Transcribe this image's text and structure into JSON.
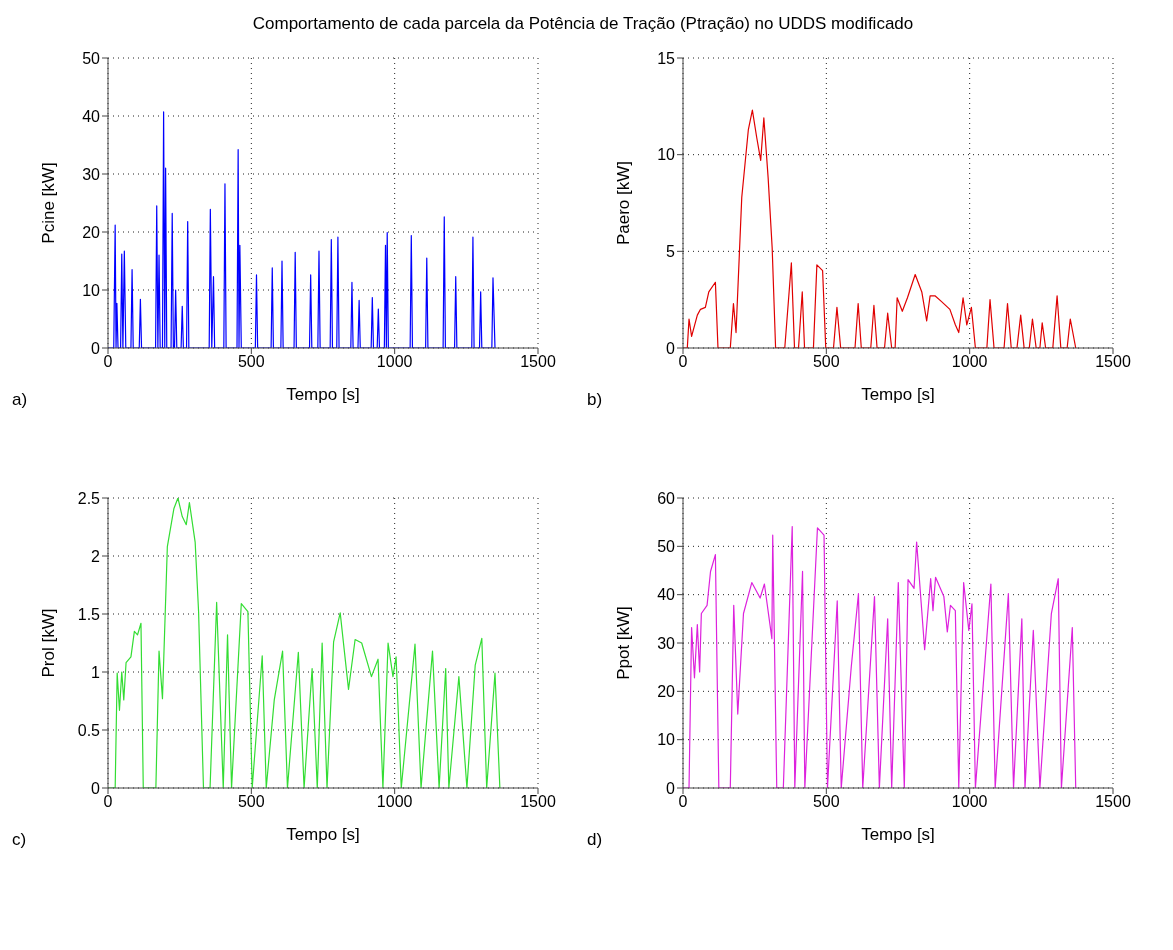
{
  "chart_data": [
    {
      "type": "line",
      "title": "Comportamento de cada parcela da Potência de Tração (Ptração) no UDDS modificado",
      "annotations": [
        "a)"
      ],
      "xlabel": "Tempo [s]",
      "ylabel": "Pcine [kW]",
      "xlim": [
        0,
        1500
      ],
      "xticks": [
        0,
        500,
        1000,
        1500
      ],
      "ylim": [
        0,
        50
      ],
      "yticks": [
        0,
        10,
        20,
        30,
        40,
        50
      ],
      "grid": true,
      "series": [
        {
          "color": "#0000ff",
          "x": [
            0,
            20,
            25,
            28,
            31,
            35,
            44,
            48,
            52,
            57,
            62,
            80,
            84,
            88,
            109,
            113,
            117,
            166,
            170,
            174,
            178,
            182,
            190,
            194,
            198,
            201,
            205,
            220,
            224,
            228,
            232,
            236,
            240,
            255,
            259,
            263,
            274,
            278,
            282,
            353,
            357,
            362,
            368,
            372,
            404,
            408,
            412,
            450,
            454,
            457,
            460,
            465,
            514,
            518,
            522,
            569,
            573,
            577,
            603,
            607,
            611,
            649,
            653,
            657,
            703,
            707,
            711,
            732,
            736,
            740,
            775,
            779,
            783,
            798,
            802,
            806,
            847,
            851,
            855,
            872,
            876,
            880,
            918,
            922,
            926,
            939,
            943,
            947,
            964,
            968,
            971,
            974,
            978,
            1054,
            1058,
            1062,
            1108,
            1112,
            1116,
            1169,
            1173,
            1177,
            1209,
            1213,
            1217,
            1269,
            1273,
            1277,
            1296,
            1300,
            1304,
            1339,
            1343,
            1350
          ],
          "values": [
            0,
            0,
            21.2,
            0,
            7.7,
            0,
            0,
            16.2,
            0,
            16.7,
            0,
            0,
            13.5,
            0,
            0,
            8.4,
            0,
            0,
            24.5,
            0,
            16,
            0,
            0,
            40.7,
            0,
            31,
            0,
            0,
            23.2,
            0,
            0,
            10,
            0,
            0,
            7.2,
            0,
            0,
            21.8,
            0,
            0,
            23.9,
            0,
            12.3,
            0,
            0,
            28.3,
            0,
            0,
            34.2,
            0,
            17.7,
            0,
            0,
            12.6,
            0,
            0,
            13.8,
            0,
            0,
            15,
            0,
            0,
            16.5,
            0,
            0,
            12.6,
            0,
            0,
            16.7,
            0,
            0,
            18.7,
            0,
            0,
            19.1,
            0,
            0,
            11.3,
            0,
            0,
            8.2,
            0,
            0,
            8.7,
            0,
            0,
            6.7,
            0,
            0,
            17.7,
            0,
            19.9,
            0,
            0,
            19.4,
            0,
            0,
            15.5,
            0,
            0,
            22.6,
            0,
            0,
            12.3,
            0,
            0,
            19.1,
            0,
            0,
            9.7,
            0,
            0,
            12.1,
            0
          ]
        }
      ]
    },
    {
      "type": "line",
      "annotations": [
        "b)"
      ],
      "xlabel": "Tempo [s]",
      "ylabel": "Paero [kW]",
      "xlim": [
        0,
        1500
      ],
      "xticks": [
        0,
        500,
        1000,
        1500
      ],
      "ylim": [
        0,
        15
      ],
      "yticks": [
        0,
        5,
        10,
        15
      ],
      "grid": true,
      "series": [
        {
          "color": "#e00000",
          "x": [
            0,
            15,
            21,
            30,
            50,
            61,
            78,
            90,
            113,
            122,
            165,
            176,
            185,
            205,
            228,
            242,
            257,
            271,
            282,
            297,
            311,
            323,
            355,
            378,
            389,
            403,
            416,
            424,
            455,
            467,
            487,
            498,
            525,
            537,
            550,
            600,
            611,
            622,
            655,
            666,
            677,
            703,
            714,
            728,
            740,
            747,
            765,
            783,
            810,
            833,
            850,
            862,
            879,
            902,
            931,
            950,
            962,
            977,
            990,
            1006,
            1020,
            1060,
            1071,
            1085,
            1120,
            1132,
            1145,
            1165,
            1178,
            1190,
            1208,
            1219,
            1232,
            1245,
            1253,
            1265,
            1290,
            1305,
            1318,
            1340,
            1351,
            1370
          ],
          "values": [
            0,
            0,
            1.5,
            0.6,
            1.7,
            2.0,
            2.1,
            2.9,
            3.4,
            0,
            0,
            2.3,
            0.8,
            7.8,
            11.3,
            12.3,
            10.9,
            9.7,
            11.9,
            8.8,
            5.2,
            0,
            0,
            4.4,
            0,
            0,
            2.9,
            0,
            0,
            4.3,
            4.0,
            0,
            0,
            2.1,
            0,
            0,
            2.3,
            0,
            0,
            2.2,
            0,
            0,
            1.8,
            0,
            0,
            2.6,
            1.9,
            2.6,
            3.8,
            2.9,
            1.4,
            2.7,
            2.7,
            2.4,
            2.0,
            1.2,
            0.8,
            2.6,
            1.2,
            2.1,
            0,
            0,
            2.5,
            0,
            0,
            2.3,
            0,
            0,
            1.7,
            0,
            0,
            1.5,
            0,
            0,
            1.3,
            0,
            0,
            2.7,
            0,
            0,
            1.5,
            0
          ]
        }
      ]
    },
    {
      "type": "line",
      "annotations": [
        "c)"
      ],
      "xlabel": "Tempo [s]",
      "ylabel": "Prol [kW]",
      "xlim": [
        0,
        1500
      ],
      "xticks": [
        0,
        500,
        1000,
        1500
      ],
      "ylim": [
        0,
        2.5
      ],
      "yticks": [
        0,
        0.5,
        1,
        1.5,
        2,
        2.5
      ],
      "grid": true,
      "series": [
        {
          "color": "#33dd33",
          "x": [
            0,
            25,
            32,
            40,
            48,
            55,
            63,
            80,
            92,
            103,
            115,
            123,
            167,
            178,
            190,
            207,
            230,
            244,
            259,
            273,
            284,
            304,
            316,
            333,
            356,
            379,
            402,
            417,
            431,
            465,
            488,
            503,
            538,
            552,
            580,
            609,
            626,
            664,
            684,
            712,
            730,
            747,
            764,
            787,
            810,
            839,
            862,
            885,
            919,
            942,
            959,
            977,
            994,
            1005,
            1023,
            1071,
            1092,
            1132,
            1155,
            1178,
            1189,
            1224,
            1252,
            1281,
            1304,
            1321,
            1350,
            1367
          ],
          "values": [
            0,
            0,
            0.99,
            0.67,
            1.0,
            0.76,
            1.08,
            1.13,
            1.35,
            1.32,
            1.42,
            0,
            0,
            1.18,
            0.77,
            2.08,
            2.41,
            2.5,
            2.34,
            2.27,
            2.46,
            2.12,
            1.52,
            0,
            0,
            1.6,
            0,
            1.32,
            0,
            1.59,
            1.52,
            0,
            1.14,
            0,
            0.76,
            1.18,
            0,
            1.17,
            0,
            1.03,
            0,
            1.25,
            0,
            1.26,
            1.51,
            0.85,
            1.28,
            1.25,
            0.96,
            1.11,
            0,
            1.25,
            0.96,
            1.13,
            0,
            1.24,
            0,
            1.18,
            0,
            1.03,
            0,
            0.96,
            0,
            1.06,
            1.29,
            0,
            0.99,
            0
          ]
        }
      ]
    },
    {
      "type": "line",
      "annotations": [
        "d)"
      ],
      "xlabel": "Tempo [s]",
      "ylabel": "Ppot [kW]",
      "xlim": [
        0,
        1500
      ],
      "xticks": [
        0,
        500,
        1000,
        1500
      ],
      "ylim": [
        0,
        60
      ],
      "yticks": [
        0,
        10,
        20,
        30,
        40,
        50,
        60
      ],
      "grid": true,
      "series": [
        {
          "color": "#dd22dd",
          "x": [
            0,
            21,
            30,
            40,
            50,
            58,
            64,
            84,
            96,
            113,
            125,
            165,
            177,
            191,
            211,
            240,
            269,
            284,
            310,
            313,
            327,
            350,
            381,
            390,
            417,
            425,
            469,
            492,
            504,
            538,
            552,
            587,
            612,
            627,
            668,
            685,
            714,
            728,
            751,
            772,
            785,
            806,
            815,
            843,
            864,
            872,
            881,
            910,
            922,
            933,
            950,
            962,
            979,
            997,
            1008,
            1020,
            1074,
            1089,
            1135,
            1153,
            1182,
            1193,
            1222,
            1245,
            1285,
            1309,
            1320,
            1358,
            1370
          ],
          "values": [
            0,
            0,
            33.2,
            22.8,
            33.8,
            24,
            36.1,
            37.8,
            44.8,
            48.3,
            0,
            0,
            37.8,
            15.3,
            36.1,
            42.5,
            39.3,
            42.2,
            30.9,
            52.3,
            0,
            0,
            54.1,
            0,
            44.8,
            0,
            53.8,
            52.3,
            0,
            38.7,
            0,
            25.1,
            40.2,
            0,
            39.6,
            0,
            35,
            0,
            42.5,
            0,
            43.1,
            41.3,
            50.9,
            28.6,
            43.3,
            36.7,
            43.6,
            39.6,
            32.3,
            37.8,
            36.7,
            0,
            42.5,
            32.6,
            38.1,
            0,
            42.2,
            0,
            40.2,
            0,
            35,
            0,
            32.6,
            0,
            36.1,
            43.3,
            0,
            33.2,
            0
          ]
        }
      ]
    }
  ]
}
